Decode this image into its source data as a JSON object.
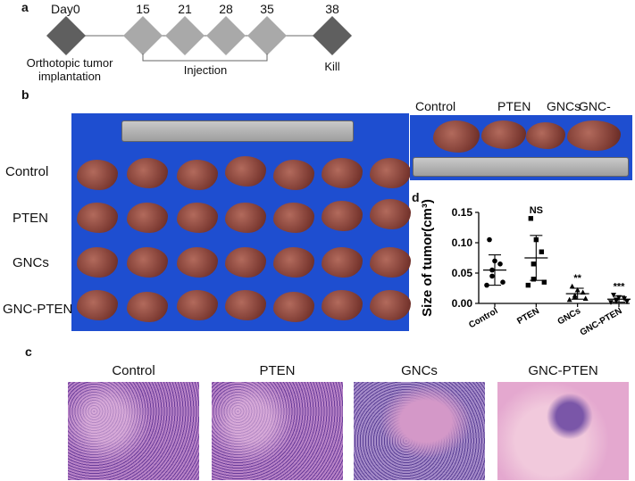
{
  "panel_a": {
    "label": "a",
    "day0": "Day0",
    "days": [
      "15",
      "21",
      "28",
      "35"
    ],
    "kill_day": "38",
    "implant_line1": "Orthotopic tumor",
    "implant_line2": "implantation",
    "injection": "Injection",
    "kill": "Kill"
  },
  "panel_b": {
    "label": "b",
    "rows": [
      "Control",
      "PTEN",
      "GNCs",
      "GNC-PTEN"
    ],
    "inset_labels": [
      "Control",
      "PTEN",
      "GNCs",
      "GNC-PTEN"
    ]
  },
  "panel_c": {
    "label": "c",
    "titles": [
      "Control",
      "PTEN",
      "GNCs",
      "GNC-PTEN"
    ]
  },
  "panel_d": {
    "label": "d"
  },
  "chart_data": {
    "type": "scatter",
    "ylabel": "Size of tumor(cm³)",
    "ylim": [
      0.0,
      0.15
    ],
    "yticks": [
      "0.00",
      "0.05",
      "0.10",
      "0.15"
    ],
    "categories": [
      "Control",
      "PTEN",
      "GNCs",
      "GNC-PTEN"
    ],
    "significance": [
      "",
      "NS",
      "**",
      "***"
    ],
    "means": [
      0.055,
      0.075,
      0.016,
      0.007
    ],
    "sd": [
      0.025,
      0.037,
      0.009,
      0.005
    ],
    "points": [
      [
        0.105,
        0.07,
        0.065,
        0.055,
        0.045,
        0.035,
        0.03
      ],
      [
        0.14,
        0.105,
        0.085,
        0.065,
        0.04,
        0.035,
        0.03
      ],
      [
        0.028,
        0.022,
        0.018,
        0.013,
        0.01,
        0.008,
        0.006
      ],
      [
        0.014,
        0.01,
        0.008,
        0.006,
        0.004,
        0.003,
        0.002
      ]
    ],
    "grid": false,
    "legend": "none"
  }
}
